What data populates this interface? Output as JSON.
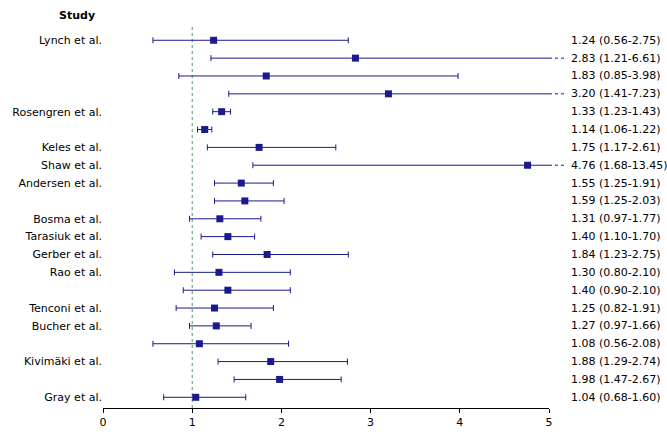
{
  "chart_data": {
    "type": "forest",
    "column_header": "Study",
    "categories": [
      "Lynch et al.",
      null,
      null,
      null,
      "Rosengren et al.",
      null,
      "Keles et al.",
      "Shaw et al.",
      "Andersen et al.",
      null,
      "Bosma et al.",
      "Tarasiuk et al.",
      "Gerber et al.",
      "Rao et al.",
      null,
      "Tenconi et al.",
      "Bucher et al.",
      null,
      "Kivimäki et al.",
      null,
      "Gray et al."
    ],
    "values": [
      1.24,
      2.83,
      1.83,
      3.2,
      1.33,
      1.14,
      1.75,
      4.76,
      1.55,
      1.59,
      1.31,
      1.4,
      1.84,
      1.3,
      1.4,
      1.25,
      1.27,
      1.08,
      1.88,
      1.98,
      1.04
    ],
    "ci_low": [
      0.56,
      1.21,
      0.85,
      1.41,
      1.23,
      1.06,
      1.17,
      1.68,
      1.25,
      1.25,
      0.97,
      1.1,
      1.23,
      0.8,
      0.9,
      0.82,
      0.97,
      0.56,
      1.29,
      1.47,
      0.68
    ],
    "ci_high": [
      2.75,
      6.61,
      3.98,
      7.23,
      1.43,
      1.22,
      2.61,
      13.45,
      1.91,
      2.03,
      1.77,
      1.7,
      2.75,
      2.1,
      2.1,
      1.91,
      1.66,
      2.08,
      2.74,
      2.67,
      1.6
    ],
    "value_labels": [
      "1.24 (0.56-2.75)",
      "2.83 (1.21-6.61)",
      "1.83 (0.85-3.98)",
      "3.20 (1.41-7.23)",
      "1.33 (1.23-1.43)",
      "1.14 (1.06-1.22)",
      "1.75 (1.17-2.61)",
      "4.76 (1.68-13.45)",
      "1.55 (1.25-1.91)",
      "1.59 (1.25-2.03)",
      "1.31 (0.97-1.77)",
      "1.40 (1.10-1.70)",
      "1.84 (1.23-2.75)",
      "1.30 (0.80-2.10)",
      "1.40 (0.90-2.10)",
      "1.25 (0.82-1.91)",
      "1.27 (0.97-1.66)",
      "1.08 (0.56-2.08)",
      "1.88 (1.29-2.74)",
      "1.98 (1.47-2.67)",
      "1.04 (0.68-1.60)"
    ],
    "color": "#1a1a8c",
    "marker": "square",
    "xlim": [
      0,
      5
    ],
    "xticks": [
      0,
      1,
      2,
      3,
      4,
      5
    ],
    "grid": false,
    "reference_line": {
      "value": 1,
      "color": "#3a9a5a",
      "line_style": "dotted"
    }
  }
}
